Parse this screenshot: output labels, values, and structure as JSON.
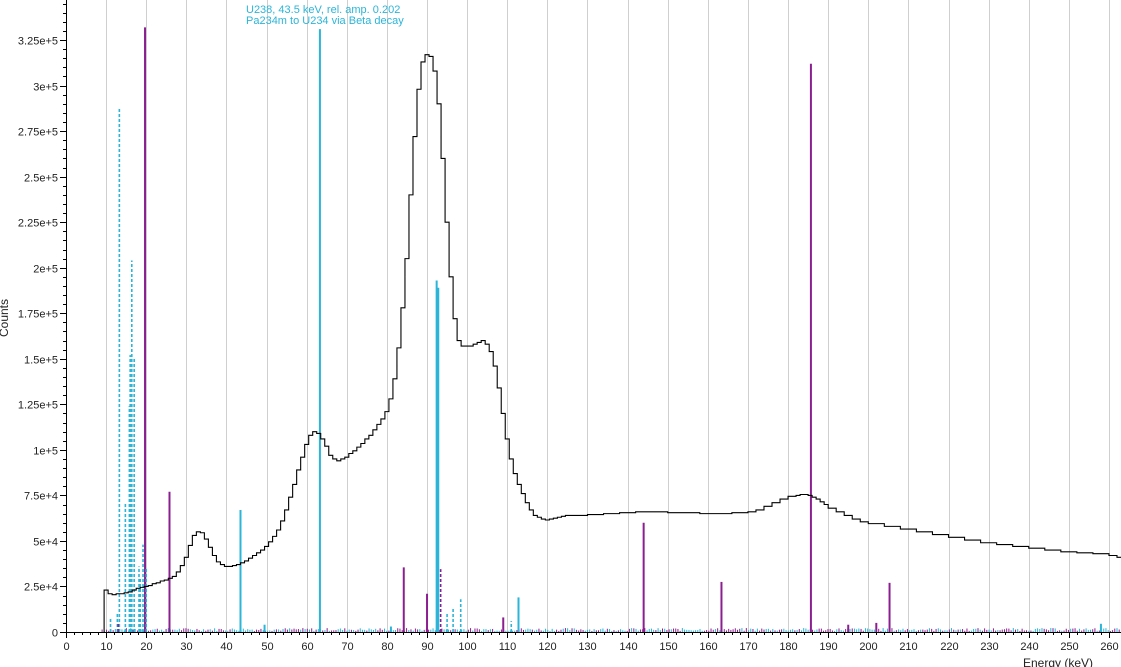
{
  "chart_data": {
    "type": "line",
    "xlabel": "Energy (keV)",
    "ylabel": "Counts",
    "xlim": [
      0,
      263
    ],
    "ylim": [
      0,
      347000
    ],
    "x_ticks": [
      0,
      10,
      20,
      30,
      40,
      50,
      60,
      70,
      80,
      90,
      100,
      110,
      120,
      130,
      140,
      150,
      160,
      170,
      180,
      190,
      200,
      210,
      220,
      230,
      240,
      250,
      260
    ],
    "x_tick_labels": [
      "0",
      "10",
      "20",
      "30",
      "40",
      "50",
      "60",
      "70",
      "80",
      "90",
      "100",
      "110",
      "120",
      "130",
      "140",
      "150",
      "160",
      "170",
      "180",
      "190",
      "200",
      "210",
      "220",
      "230",
      "240",
      "250",
      "260"
    ],
    "y_ticks": [
      0,
      25000,
      50000,
      75000,
      100000,
      125000,
      150000,
      175000,
      200000,
      225000,
      250000,
      275000,
      300000,
      325000
    ],
    "y_tick_labels": [
      "0",
      "2.5e+4",
      "5e+4",
      "7.5e+4",
      "1e+5",
      "1.25e+5",
      "1.5e+5",
      "1.75e+5",
      "2e+5",
      "2.25e+5",
      "2.5e+5",
      "2.75e+5",
      "3e+5",
      "3.25e+5"
    ],
    "grid": "vertical",
    "spectrum": {
      "style": "step",
      "color": "#000000",
      "x": [
        9.5,
        10.5,
        11.5,
        12.5,
        13.5,
        14.5,
        15.5,
        16.5,
        17.5,
        18.5,
        19.5,
        20.5,
        21.5,
        22.5,
        23.5,
        24.5,
        25.5,
        26.5,
        27.5,
        28.5,
        29.5,
        30.5,
        31.5,
        32.5,
        33.5,
        34.5,
        35.5,
        36.5,
        37.5,
        38.5,
        39.5,
        40.5,
        41.5,
        42.5,
        43.5,
        44.5,
        45.5,
        46.5,
        47.5,
        48.5,
        49.5,
        50.5,
        51.5,
        52.5,
        53.5,
        54.5,
        55.5,
        56.5,
        57.5,
        58.5,
        59.5,
        60.5,
        61.5,
        62.5,
        63.5,
        64.5,
        65.5,
        66.5,
        67.5,
        68.5,
        69.5,
        70.5,
        71.5,
        72.5,
        73.5,
        74.5,
        75.5,
        76.5,
        77.5,
        78.5,
        79.5,
        80.5,
        81.5,
        82.5,
        83.5,
        84.5,
        85.5,
        86.5,
        87.5,
        88.5,
        89.5,
        90.5,
        91.5,
        92.5,
        93.5,
        94.5,
        95.5,
        96.5,
        97.5,
        98.5,
        99.5,
        100.5,
        101.5,
        102.5,
        103.5,
        104.5,
        105.5,
        106.5,
        107.5,
        108.5,
        109.5,
        110.5,
        111.5,
        112.5,
        113.5,
        114.5,
        115.5,
        116.5,
        117.5,
        118.5,
        119.5,
        120.5,
        121.5,
        122.5,
        123.5,
        124.5,
        126,
        130,
        134,
        138,
        142,
        146,
        150,
        154,
        158,
        162,
        166,
        170,
        172,
        174,
        176,
        178,
        180,
        182,
        183,
        184,
        185,
        186,
        187,
        188,
        189,
        190,
        192,
        194,
        196,
        198,
        200,
        204,
        208,
        212,
        216,
        220,
        224,
        228,
        232,
        236,
        240,
        244,
        248,
        252,
        256,
        260,
        262,
        263
      ],
      "y": [
        23000,
        21000,
        20500,
        21000,
        21000,
        21500,
        22000,
        23000,
        24000,
        24500,
        25000,
        25500,
        26500,
        27000,
        28000,
        28500,
        29500,
        30500,
        33000,
        36500,
        41000,
        47500,
        53000,
        55000,
        54500,
        51000,
        46500,
        42000,
        38500,
        37000,
        36000,
        36000,
        36500,
        37000,
        38000,
        39000,
        40500,
        42000,
        43500,
        45000,
        47000,
        49500,
        52500,
        56000,
        61000,
        67000,
        74000,
        81000,
        89000,
        96000,
        103000,
        108000,
        110000,
        109000,
        106000,
        102000,
        97000,
        95000,
        94000,
        95000,
        96000,
        98000,
        99500,
        101500,
        103500,
        106000,
        108000,
        111000,
        114000,
        117000,
        121000,
        128000,
        139000,
        156000,
        178000,
        205000,
        240000,
        272000,
        298000,
        313000,
        317000,
        316000,
        308000,
        290000,
        260000,
        225000,
        195000,
        172000,
        160000,
        157000,
        157000,
        157000,
        158000,
        159000,
        160000,
        158000,
        154000,
        146000,
        134000,
        120000,
        106000,
        95000,
        87000,
        81000,
        76000,
        71000,
        67000,
        64000,
        63000,
        62000,
        61500,
        62000,
        62500,
        63000,
        63500,
        64000,
        64000,
        64500,
        65000,
        65500,
        66000,
        66000,
        65500,
        65500,
        65000,
        65000,
        65500,
        66000,
        67000,
        69000,
        71000,
        73000,
        74500,
        75000,
        75500,
        75500,
        75000,
        74000,
        73000,
        71500,
        70000,
        68000,
        66000,
        64000,
        62000,
        60500,
        59500,
        58000,
        56500,
        55000,
        53500,
        52000,
        50500,
        49000,
        48000,
        47000,
        46000,
        45000,
        44000,
        43500,
        43000,
        42000,
        41000,
        41000
      ],
      "x_end": 263
    },
    "line_series": [
      {
        "color": "#8b1f8f",
        "style": "solid",
        "x": [
          19.7,
          25.8,
          84.2,
          90.0,
          109.0,
          144.0,
          163.4,
          185.7,
          205.3,
          202.0,
          195.0
        ],
        "y": [
          332000,
          77000,
          35500,
          21000,
          8000,
          60000,
          27500,
          312000,
          27000,
          5000,
          4000
        ]
      },
      {
        "color": "#2bb5d8",
        "style": "solid",
        "x": [
          43.5,
          49.5,
          63.3,
          92.4,
          92.8,
          112.8,
          258.0,
          81.0
        ],
        "y": [
          67000,
          4000,
          331000,
          193000,
          189000,
          19000,
          4500,
          3000
        ]
      },
      {
        "color": "#2bb5d8",
        "style": "dashed",
        "x": [
          11.1,
          12.8,
          13.3,
          14.8,
          15.8,
          16.0,
          16.4,
          17.0,
          18.2,
          18.5,
          19.2,
          20.0,
          95.0,
          96.5,
          98.4,
          111.0
        ],
        "y": [
          8000,
          11000,
          288000,
          71000,
          124000,
          152000,
          204000,
          150000,
          36000,
          30000,
          48000,
          35000,
          11000,
          13000,
          18000,
          6000
        ]
      },
      {
        "color": "#8b1f8f",
        "style": "dashed",
        "x": [
          93.4,
          13.0
        ],
        "y": [
          34500,
          5000
        ]
      }
    ],
    "annotation": {
      "lines": [
        "U238, 43.5 keV, rel. amp. 0.202",
        "Pa234m to U234 via Beta decay"
      ],
      "x": 63.3
    }
  }
}
